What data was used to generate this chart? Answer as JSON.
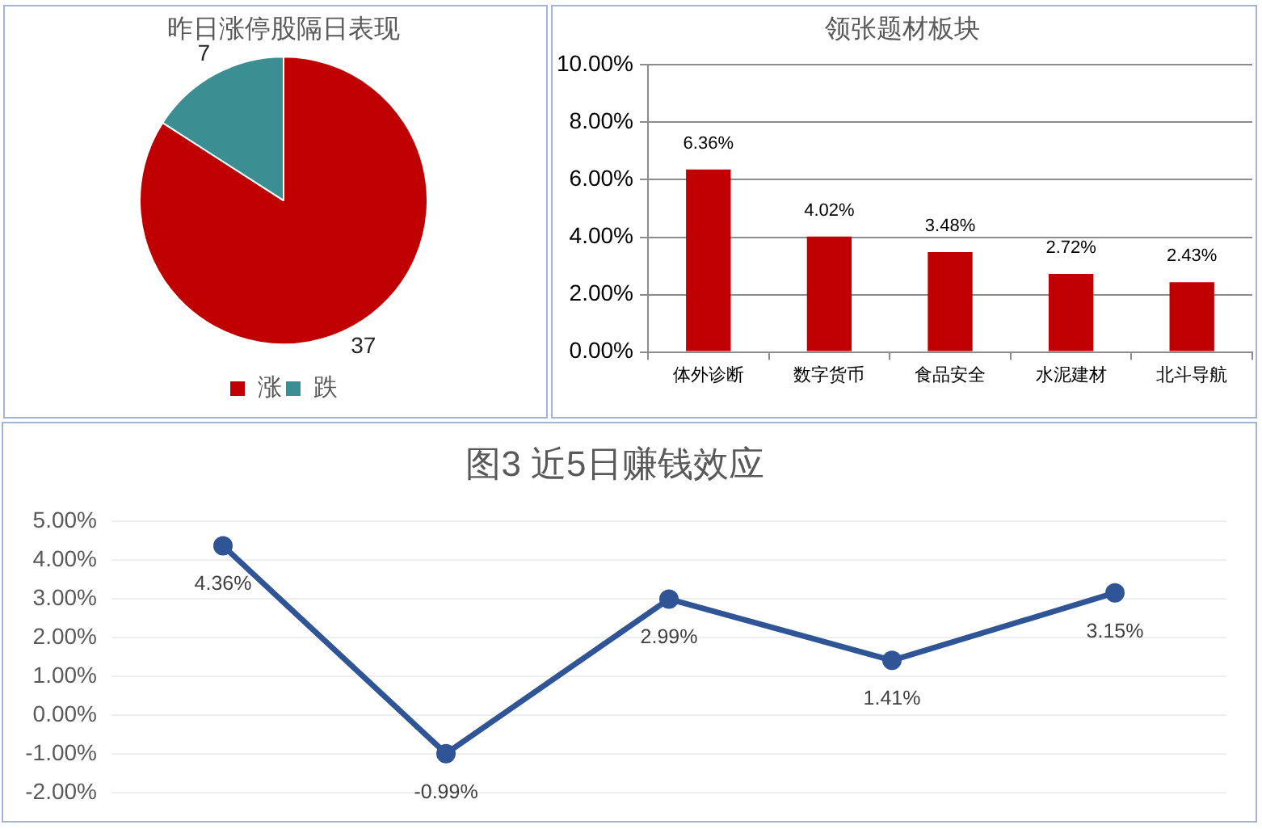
{
  "chart_data": [
    {
      "type": "pie",
      "title": "昨日涨停股隔日表现",
      "categories": [
        "涨",
        "跌"
      ],
      "values": [
        37,
        7
      ],
      "colors": [
        "#c00000",
        "#3b8f93"
      ],
      "data_labels": true,
      "legend": "bottom"
    },
    {
      "type": "bar",
      "title": "领张题材板块",
      "categories": [
        "体外诊断",
        "数字货币",
        "食品安全",
        "水泥建材",
        "北斗导航"
      ],
      "values": [
        6.36,
        4.02,
        3.48,
        2.72,
        2.43
      ],
      "color": "#c00000",
      "value_labels": [
        "6.36%",
        "4.02%",
        "3.48%",
        "2.72%",
        "2.43%"
      ],
      "ylim": [
        0,
        10
      ],
      "yticks": [
        {
          "value": 0,
          "label": "0.00%"
        },
        {
          "value": 2,
          "label": "2.00%"
        },
        {
          "value": 4,
          "label": "4.00%"
        },
        {
          "value": 6,
          "label": "6.00%"
        },
        {
          "value": 8,
          "label": "8.00%"
        },
        {
          "value": 10,
          "label": "10.00%"
        }
      ],
      "grid": "y"
    },
    {
      "type": "line",
      "title": "图3 近5日赚钱效应",
      "categories": [
        null,
        null,
        null,
        null,
        null
      ],
      "values": [
        4.36,
        -0.99,
        2.99,
        1.41,
        3.15
      ],
      "color": "#2f5597",
      "value_labels": [
        "4.36%",
        "-0.99%",
        "2.99%",
        "1.41%",
        "3.15%"
      ],
      "ylim": [
        -2,
        5
      ],
      "yticks": [
        {
          "value": -2,
          "label": "-2.00%"
        },
        {
          "value": -1,
          "label": "-1.00%"
        },
        {
          "value": 0,
          "label": "0.00%"
        },
        {
          "value": 1,
          "label": "1.00%"
        },
        {
          "value": 2,
          "label": "2.00%"
        },
        {
          "value": 3,
          "label": "3.00%"
        },
        {
          "value": 4,
          "label": "4.00%"
        },
        {
          "value": 5,
          "label": "5.00%"
        }
      ],
      "grid": "y",
      "marker": "circle",
      "line_style": "solid"
    }
  ]
}
